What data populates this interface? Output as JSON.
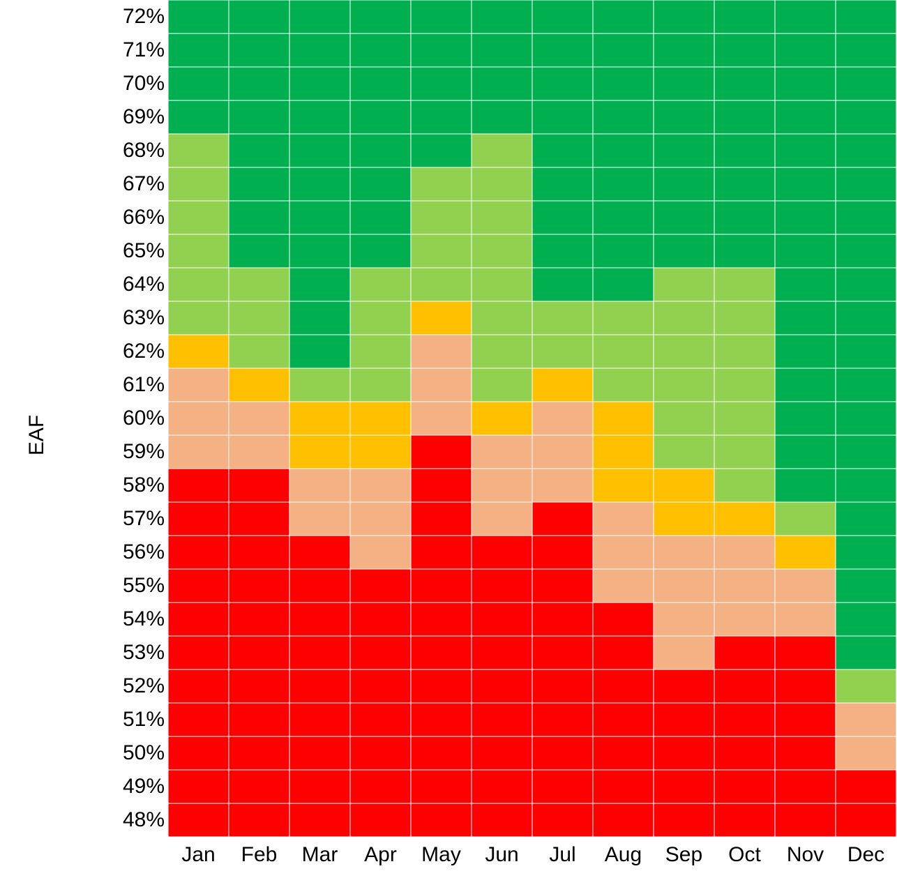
{
  "chart_data": {
    "type": "heatmap",
    "ylabel": "EAF",
    "x_categories": [
      "Jan",
      "Feb",
      "Mar",
      "Apr",
      "May",
      "Jun",
      "Jul",
      "Aug",
      "Sep",
      "Oct",
      "Nov",
      "Dec"
    ],
    "y_categories": [
      "72%",
      "71%",
      "70%",
      "69%",
      "68%",
      "67%",
      "66%",
      "65%",
      "64%",
      "63%",
      "62%",
      "61%",
      "60%",
      "59%",
      "58%",
      "57%",
      "56%",
      "55%",
      "54%",
      "53%",
      "52%",
      "51%",
      "50%",
      "49%",
      "48%"
    ],
    "color_levels": {
      "4": "#00b050",
      "3": "#92d050",
      "2": "#ffc000",
      "1": "#f4b183",
      "0": "#ff0000"
    },
    "grid_line_color": "#ffffff",
    "values": [
      [
        4,
        4,
        4,
        4,
        4,
        4,
        4,
        4,
        4,
        4,
        4,
        4
      ],
      [
        4,
        4,
        4,
        4,
        4,
        4,
        4,
        4,
        4,
        4,
        4,
        4
      ],
      [
        4,
        4,
        4,
        4,
        4,
        4,
        4,
        4,
        4,
        4,
        4,
        4
      ],
      [
        4,
        4,
        4,
        4,
        4,
        4,
        4,
        4,
        4,
        4,
        4,
        4
      ],
      [
        3,
        4,
        4,
        4,
        4,
        3,
        4,
        4,
        4,
        4,
        4,
        4
      ],
      [
        3,
        4,
        4,
        4,
        3,
        3,
        4,
        4,
        4,
        4,
        4,
        4
      ],
      [
        3,
        4,
        4,
        4,
        3,
        3,
        4,
        4,
        4,
        4,
        4,
        4
      ],
      [
        3,
        4,
        4,
        4,
        3,
        3,
        4,
        4,
        4,
        4,
        4,
        4
      ],
      [
        3,
        3,
        4,
        3,
        3,
        3,
        4,
        4,
        3,
        3,
        4,
        4
      ],
      [
        3,
        3,
        4,
        3,
        2,
        3,
        3,
        3,
        3,
        3,
        4,
        4
      ],
      [
        2,
        3,
        4,
        3,
        1,
        3,
        3,
        3,
        3,
        3,
        4,
        4
      ],
      [
        1,
        2,
        3,
        3,
        1,
        3,
        2,
        3,
        3,
        3,
        4,
        4
      ],
      [
        1,
        1,
        2,
        2,
        1,
        2,
        1,
        2,
        3,
        3,
        4,
        4
      ],
      [
        1,
        1,
        2,
        2,
        0,
        1,
        1,
        2,
        3,
        3,
        4,
        4
      ],
      [
        0,
        0,
        1,
        1,
        0,
        1,
        1,
        2,
        2,
        3,
        4,
        4
      ],
      [
        0,
        0,
        1,
        1,
        0,
        1,
        0,
        1,
        2,
        2,
        3,
        4
      ],
      [
        0,
        0,
        0,
        1,
        0,
        0,
        0,
        1,
        1,
        1,
        2,
        4
      ],
      [
        0,
        0,
        0,
        0,
        0,
        0,
        0,
        1,
        1,
        1,
        1,
        4
      ],
      [
        0,
        0,
        0,
        0,
        0,
        0,
        0,
        0,
        1,
        1,
        1,
        4
      ],
      [
        0,
        0,
        0,
        0,
        0,
        0,
        0,
        0,
        1,
        0,
        0,
        4
      ],
      [
        0,
        0,
        0,
        0,
        0,
        0,
        0,
        0,
        0,
        0,
        0,
        3
      ],
      [
        0,
        0,
        0,
        0,
        0,
        0,
        0,
        0,
        0,
        0,
        0,
        1
      ],
      [
        0,
        0,
        0,
        0,
        0,
        0,
        0,
        0,
        0,
        0,
        0,
        1
      ],
      [
        0,
        0,
        0,
        0,
        0,
        0,
        0,
        0,
        0,
        0,
        0,
        0
      ],
      [
        0,
        0,
        0,
        0,
        0,
        0,
        0,
        0,
        0,
        0,
        0,
        0
      ]
    ],
    "grid": true,
    "legend": "none"
  }
}
